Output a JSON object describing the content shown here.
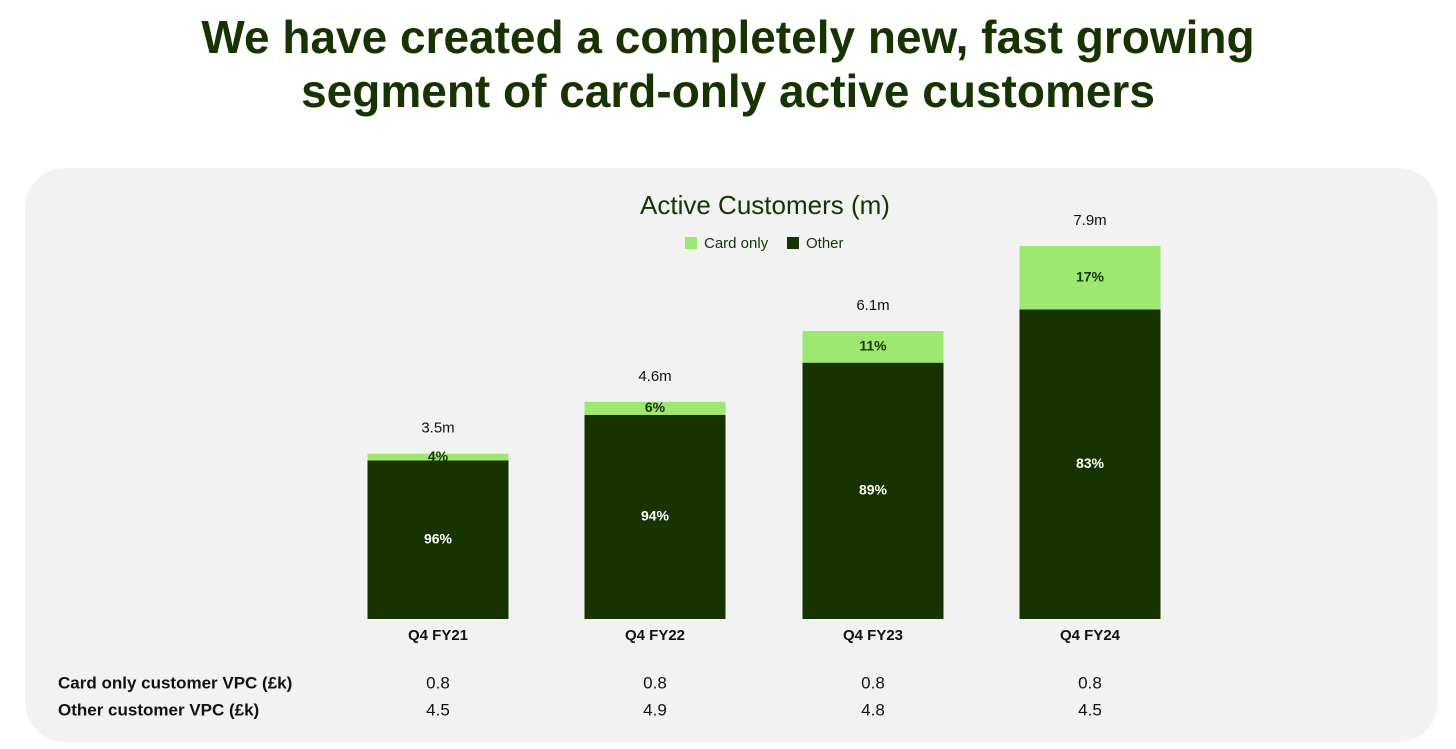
{
  "heading": "We have created a completely new, fast growing segment of card-only active customers",
  "chart_data": {
    "type": "stacked-bar",
    "title": "Active Customers (m)",
    "categories": [
      "Q4 FY21",
      "Q4 FY22",
      "Q4 FY23",
      "Q4 FY24"
    ],
    "series": [
      {
        "name": "Card only",
        "color": "#9de870",
        "label_color": "#163300",
        "values": [
          4,
          6,
          11,
          17
        ],
        "value_labels": [
          "4%",
          "6%",
          "11%",
          "17%"
        ]
      },
      {
        "name": "Other",
        "color": "#163300",
        "label_color": "#ffffff",
        "values": [
          96,
          94,
          89,
          83
        ],
        "value_labels": [
          "96%",
          "94%",
          "89%",
          "83%"
        ]
      }
    ],
    "totals": {
      "values": [
        3.5,
        4.6,
        6.1,
        7.9
      ],
      "value_labels": [
        "3.5m",
        "4.6m",
        "6.1m",
        "7.9m"
      ]
    },
    "legend": "top"
  },
  "table": {
    "rows": [
      [
        "Card only customer VPC (£k)",
        0.8,
        0.8,
        0.8,
        0.8
      ],
      [
        "Other customer VPC (£k)",
        4.5,
        4.9,
        4.8,
        4.5
      ]
    ]
  }
}
